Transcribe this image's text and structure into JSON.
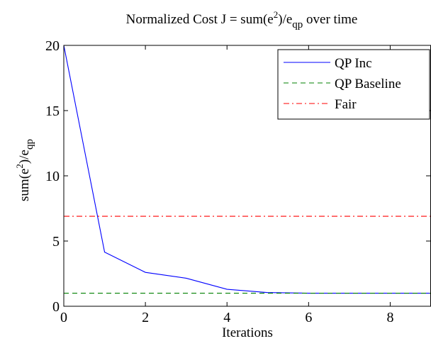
{
  "chart_data": {
    "type": "line",
    "title_main": "Normalized Cost J = sum(e",
    "title_sup": "2",
    "title_mid": ")/e",
    "title_sub": "qp",
    "title_tail": " over time",
    "xlabel": "Iterations",
    "ylabel_main": "sum(e",
    "ylabel_sup": "2",
    "ylabel_mid": ")/e",
    "ylabel_sub": "qp",
    "xlim": [
      0,
      9
    ],
    "ylim": [
      0,
      20
    ],
    "xticks": [
      0,
      2,
      4,
      6,
      8
    ],
    "yticks": [
      0,
      5,
      10,
      15,
      20
    ],
    "xtick_labels": [
      "0",
      "2",
      "4",
      "6",
      "8"
    ],
    "ytick_labels": [
      "0",
      "5",
      "10",
      "15",
      "20"
    ],
    "grid": false,
    "legend_position": "top-right",
    "series": [
      {
        "name": "QP Inc",
        "color": "#0000ff",
        "style": "solid",
        "x": [
          0,
          1,
          2,
          3,
          4,
          5,
          6,
          7,
          8,
          9
        ],
        "y": [
          20,
          4.15,
          2.6,
          2.15,
          1.3,
          1.05,
          1.0,
          1.0,
          1.0,
          1.0
        ]
      },
      {
        "name": "QP Baseline",
        "color": "#008000",
        "style": "dashed",
        "x": [
          0,
          9
        ],
        "y": [
          1.0,
          1.0
        ]
      },
      {
        "name": "Fair",
        "color": "#ff0000",
        "style": "dashdot",
        "x": [
          0,
          9
        ],
        "y": [
          6.9,
          6.9
        ]
      }
    ]
  }
}
